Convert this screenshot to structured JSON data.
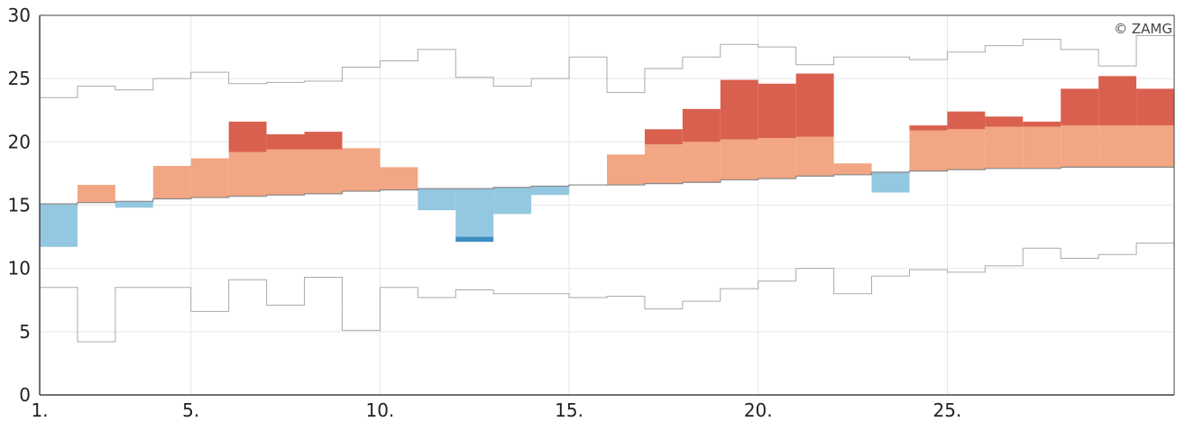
{
  "chart_data": {
    "type": "bar",
    "credit": "© ZAMG",
    "x_ticks": [
      {
        "day": 1,
        "label": "1."
      },
      {
        "day": 5,
        "label": "5."
      },
      {
        "day": 10,
        "label": "10."
      },
      {
        "day": 15,
        "label": "15."
      },
      {
        "day": 20,
        "label": "20."
      },
      {
        "day": 25,
        "label": "25."
      }
    ],
    "y_ticks": [
      0,
      5,
      10,
      15,
      20,
      25,
      30
    ],
    "xlim": [
      1,
      31
    ],
    "ylim": [
      0,
      30
    ],
    "grid": true,
    "colors": {
      "warm": "#f2a683",
      "very_warm": "#d9604f",
      "cool": "#94c7e0",
      "very_cool": "#3c8ec1",
      "reference_line": "#888888",
      "extreme_line": "#aaaaaa",
      "grid": "#e6e6e6",
      "axis": "#444444"
    },
    "days": [
      {
        "day": 1,
        "norm": 15.1,
        "value": 11.7,
        "threshold": null,
        "max_ref": 23.5,
        "min_ref": 8.5
      },
      {
        "day": 2,
        "norm": 15.2,
        "value": 16.6,
        "threshold": null,
        "max_ref": 24.4,
        "min_ref": 4.2
      },
      {
        "day": 3,
        "norm": 15.3,
        "value": 14.8,
        "threshold": null,
        "max_ref": 24.1,
        "min_ref": 8.5
      },
      {
        "day": 4,
        "norm": 15.5,
        "value": 18.1,
        "threshold": null,
        "max_ref": 25.0,
        "min_ref": 8.5
      },
      {
        "day": 5,
        "norm": 15.6,
        "value": 18.7,
        "threshold": null,
        "max_ref": 25.5,
        "min_ref": 6.6
      },
      {
        "day": 6,
        "norm": 15.7,
        "value": 21.6,
        "threshold": 19.2,
        "max_ref": 24.6,
        "min_ref": 9.1
      },
      {
        "day": 7,
        "norm": 15.8,
        "value": 20.6,
        "threshold": 19.4,
        "max_ref": 24.7,
        "min_ref": 7.1
      },
      {
        "day": 8,
        "norm": 15.9,
        "value": 20.8,
        "threshold": 19.4,
        "max_ref": 24.8,
        "min_ref": 9.3
      },
      {
        "day": 9,
        "norm": 16.1,
        "value": 19.5,
        "threshold": null,
        "max_ref": 25.9,
        "min_ref": 5.1
      },
      {
        "day": 10,
        "norm": 16.2,
        "value": 18.0,
        "threshold": null,
        "max_ref": 26.4,
        "min_ref": 8.5
      },
      {
        "day": 11,
        "norm": 16.3,
        "value": 14.6,
        "threshold": null,
        "max_ref": 27.3,
        "min_ref": 7.7
      },
      {
        "day": 12,
        "norm": 16.3,
        "value": 12.1,
        "threshold": 12.5,
        "max_ref": 25.1,
        "min_ref": 8.3
      },
      {
        "day": 13,
        "norm": 16.4,
        "value": 14.3,
        "threshold": null,
        "max_ref": 24.4,
        "min_ref": 8.0
      },
      {
        "day": 14,
        "norm": 16.5,
        "value": 15.8,
        "threshold": null,
        "max_ref": 25.0,
        "min_ref": 8.0
      },
      {
        "day": 15,
        "norm": 16.6,
        "value": 16.6,
        "threshold": null,
        "max_ref": 26.7,
        "min_ref": 7.7
      },
      {
        "day": 16,
        "norm": 16.6,
        "value": 19.0,
        "threshold": null,
        "max_ref": 23.9,
        "min_ref": 7.8
      },
      {
        "day": 17,
        "norm": 16.7,
        "value": 21.0,
        "threshold": 19.8,
        "max_ref": 25.8,
        "min_ref": 6.8
      },
      {
        "day": 18,
        "norm": 16.8,
        "value": 22.6,
        "threshold": 20.0,
        "max_ref": 26.7,
        "min_ref": 7.4
      },
      {
        "day": 19,
        "norm": 17.0,
        "value": 24.9,
        "threshold": 20.2,
        "max_ref": 27.7,
        "min_ref": 8.4
      },
      {
        "day": 20,
        "norm": 17.1,
        "value": 24.6,
        "threshold": 20.3,
        "max_ref": 27.5,
        "min_ref": 9.0
      },
      {
        "day": 21,
        "norm": 17.3,
        "value": 25.4,
        "threshold": 20.4,
        "max_ref": 26.1,
        "min_ref": 10.0
      },
      {
        "day": 22,
        "norm": 17.4,
        "value": 18.3,
        "threshold": null,
        "max_ref": 26.7,
        "min_ref": 8.0
      },
      {
        "day": 23,
        "norm": 17.6,
        "value": 16.0,
        "threshold": null,
        "max_ref": 26.7,
        "min_ref": 9.4
      },
      {
        "day": 24,
        "norm": 17.7,
        "value": 21.3,
        "threshold": 20.9,
        "max_ref": 26.5,
        "min_ref": 9.9
      },
      {
        "day": 25,
        "norm": 17.8,
        "value": 22.4,
        "threshold": 21.0,
        "max_ref": 27.1,
        "min_ref": 9.7
      },
      {
        "day": 26,
        "norm": 17.9,
        "value": 22.0,
        "threshold": 21.2,
        "max_ref": 27.6,
        "min_ref": 10.2
      },
      {
        "day": 27,
        "norm": 17.9,
        "value": 21.6,
        "threshold": 21.2,
        "max_ref": 28.1,
        "min_ref": 11.6
      },
      {
        "day": 28,
        "norm": 18.0,
        "value": 24.2,
        "threshold": 21.3,
        "max_ref": 27.3,
        "min_ref": 10.8
      },
      {
        "day": 29,
        "norm": 18.0,
        "value": 25.2,
        "threshold": 21.3,
        "max_ref": 26.0,
        "min_ref": 11.1
      },
      {
        "day": 30,
        "norm": 18.0,
        "value": 24.2,
        "threshold": 21.3,
        "max_ref": 28.4,
        "min_ref": 12.0
      }
    ]
  }
}
